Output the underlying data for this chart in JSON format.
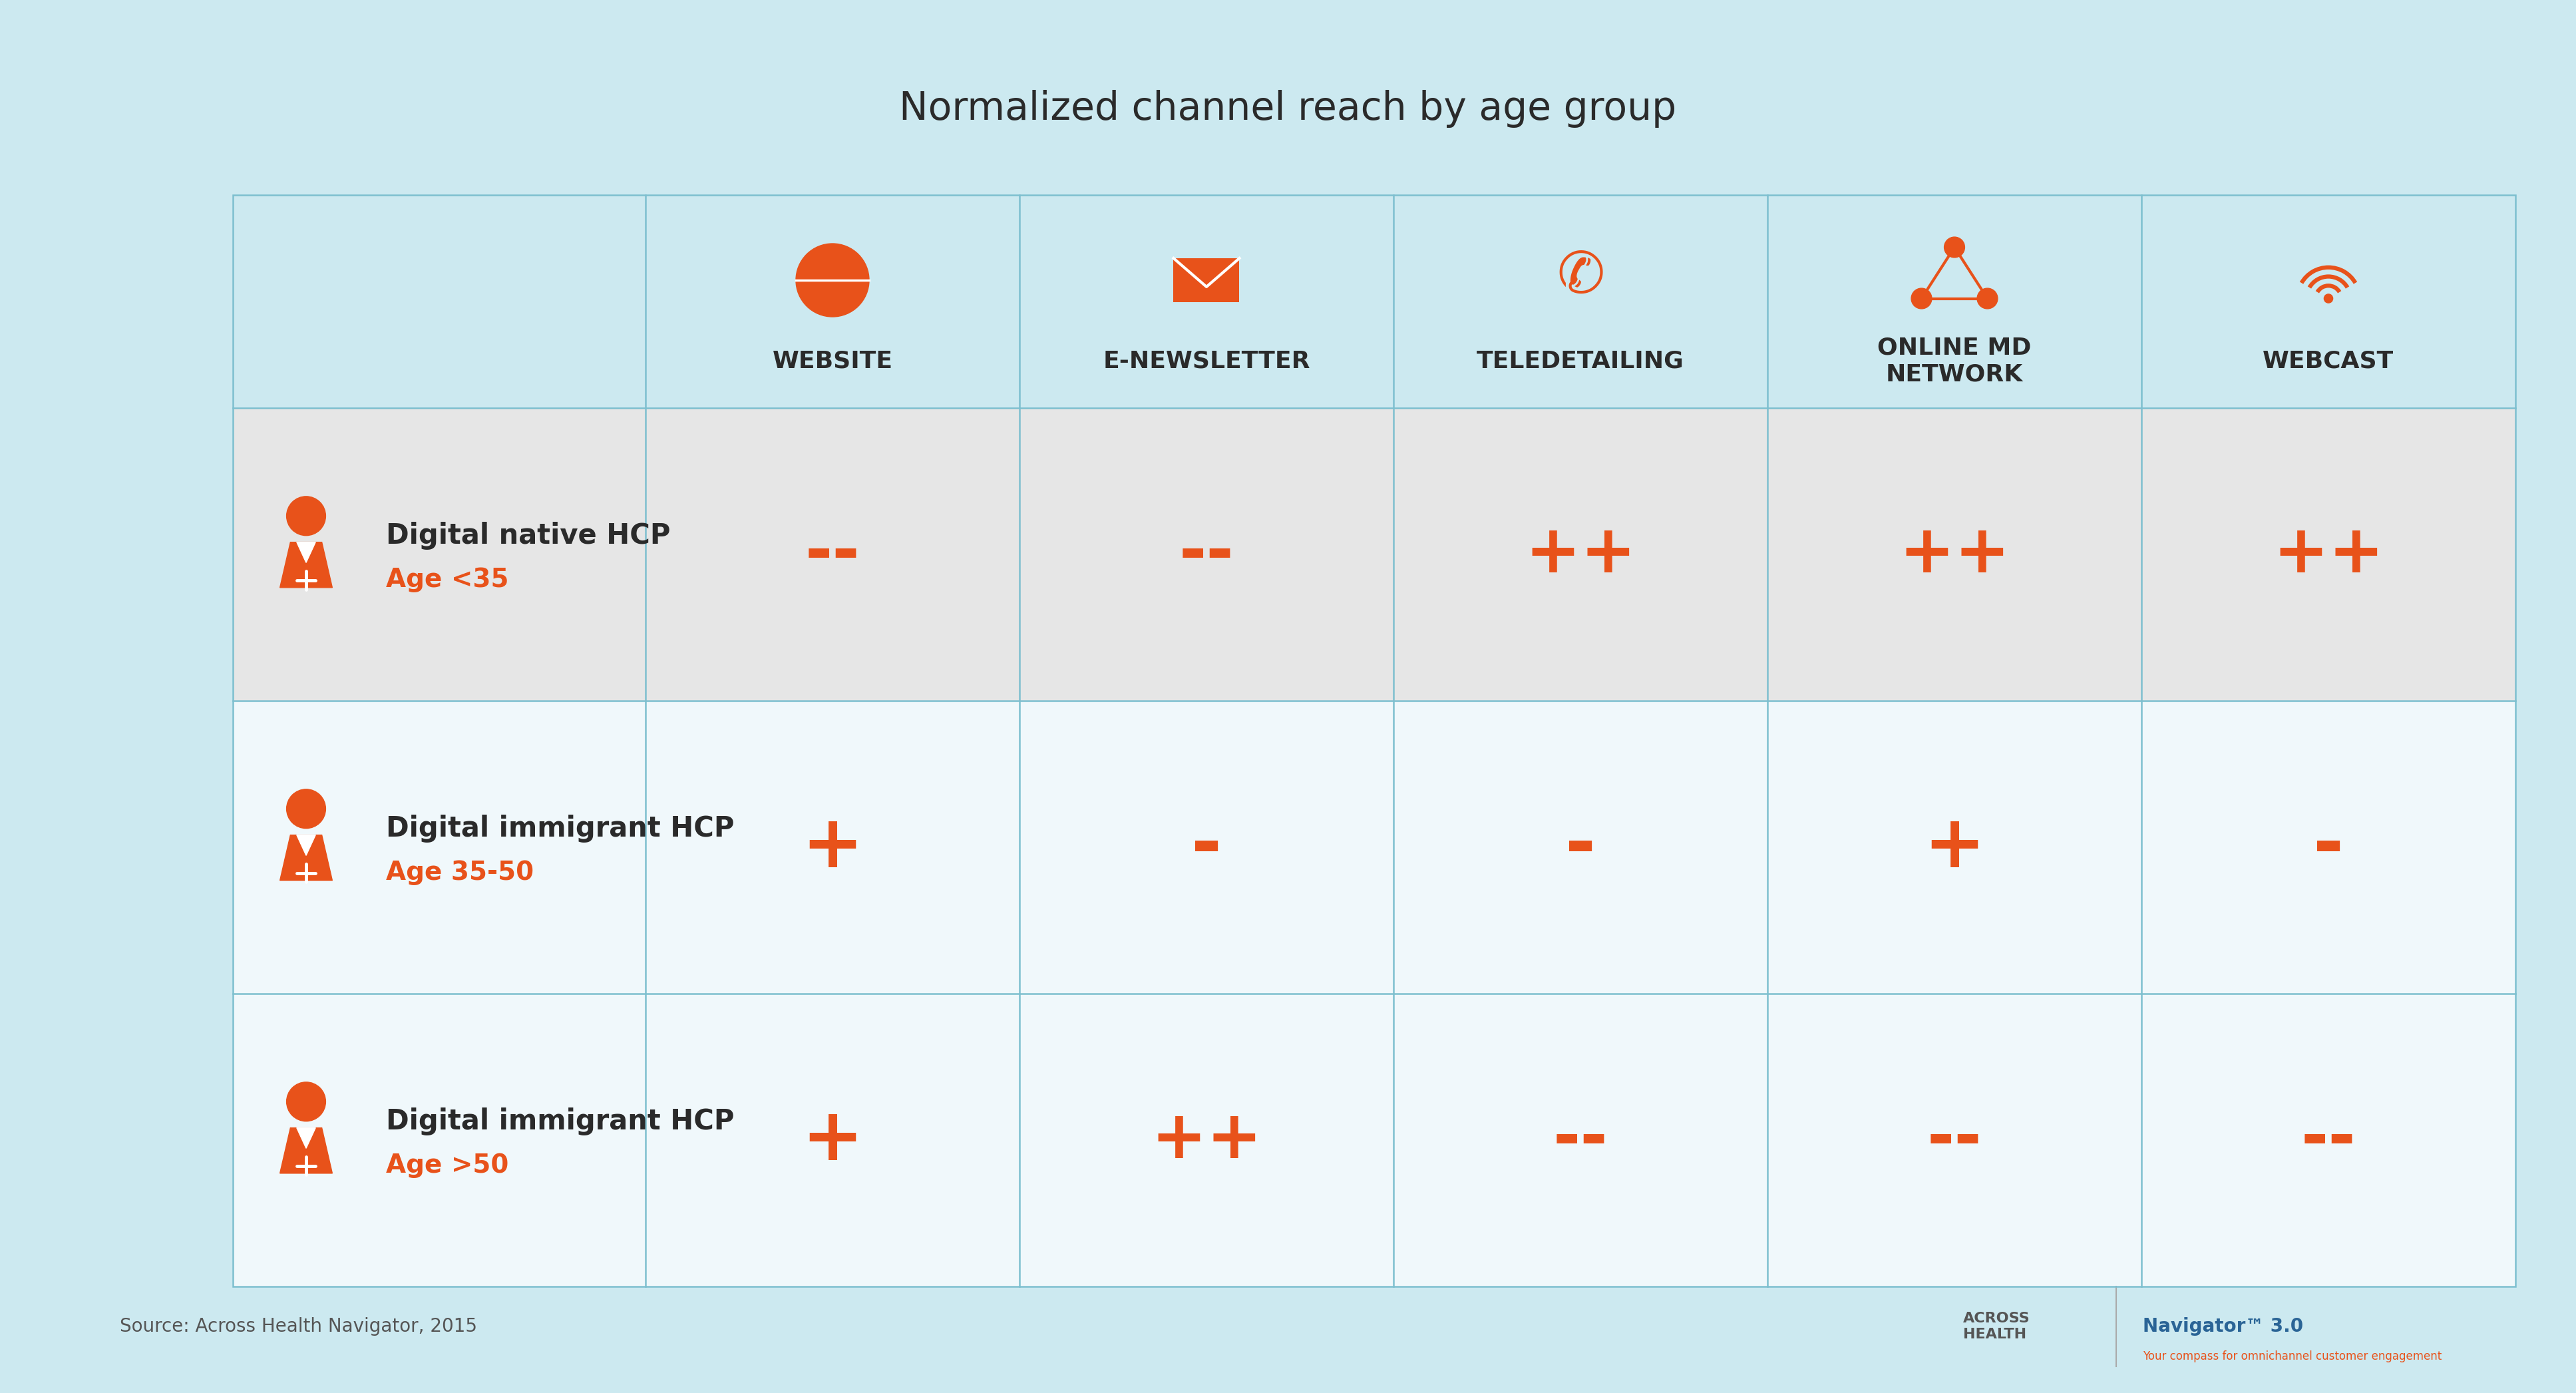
{
  "title": "Normalized channel reach by age group",
  "background_color": "#cce9f0",
  "header_bg_color": "#cce9f0",
  "row_bgs": [
    "#e6e6e6",
    "#f0f8fb",
    "#f0f8fb"
  ],
  "border_color": "#7dbfcf",
  "orange_color": "#e8521a",
  "dark_text": "#2a2a2a",
  "columns": [
    "WEBSITE",
    "E-NEWSLETTER",
    "TELEDETAILING",
    "ONLINE MD\nNETWORK",
    "WEBCAST"
  ],
  "rows": [
    {
      "label": "Digital native HCP",
      "age": "Age <35",
      "values": [
        "--",
        "--",
        "++",
        "++",
        "++"
      ]
    },
    {
      "label": "Digital immigrant HCP",
      "age": "Age 35-50",
      "values": [
        "+",
        "-",
        "-",
        "+",
        "-"
      ]
    },
    {
      "label": "Digital immigrant HCP",
      "age": "Age >50",
      "values": [
        "+",
        "++",
        "--",
        "--",
        "--"
      ]
    }
  ],
  "source_text": "Source: Across Health Navigator, 2015",
  "title_fontsize": 42,
  "header_fontsize": 26,
  "label_fontsize": 30,
  "age_fontsize": 28,
  "value_fontsize_double": 72,
  "value_fontsize_single": 80,
  "icon_fontsize": 56,
  "doctor_icon_fontsize": 80,
  "source_fontsize": 20
}
